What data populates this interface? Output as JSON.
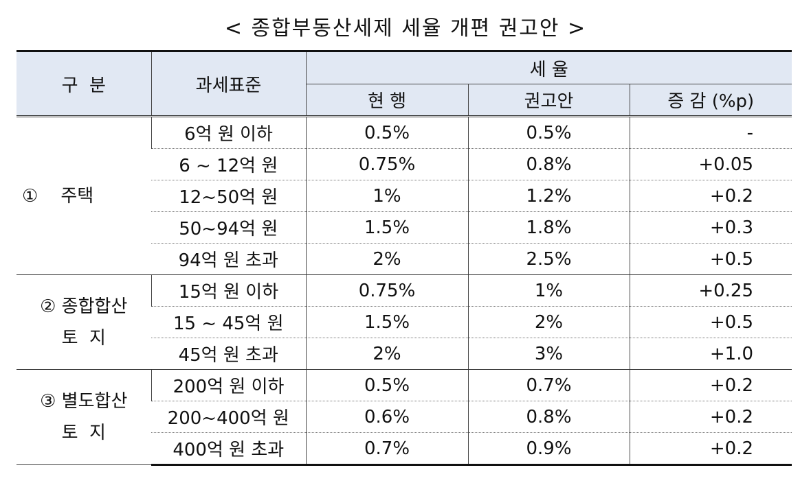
{
  "title": "< 종합부동산세제 세율 개편 권고안 >",
  "header": {
    "category": "구  분",
    "tax_base": "과세표준",
    "tax_rate": "세 율",
    "current": "현 행",
    "proposal": "권고안",
    "change": "증 감 (%p)"
  },
  "groups": [
    {
      "label_lines": [
        "①    주택"
      ],
      "rows": [
        {
          "base": "6억 원 이하",
          "current": "0.5%",
          "proposal": "0.5%",
          "change": "-"
        },
        {
          "base": "6 ~ 12억 원",
          "current": "0.75%",
          "proposal": "0.8%",
          "change": "+0.05"
        },
        {
          "base": "12~50억 원",
          "current": "1%",
          "proposal": "1.2%",
          "change": "+0.2"
        },
        {
          "base": "50~94억 원",
          "current": "1.5%",
          "proposal": "1.8%",
          "change": "+0.3"
        },
        {
          "base": "94억 원 초과",
          "current": "2%",
          "proposal": "2.5%",
          "change": "+0.5"
        }
      ]
    },
    {
      "label_lines": [
        "② 종합합산",
        "토  지"
      ],
      "rows": [
        {
          "base": "15억 원 이하",
          "current": "0.75%",
          "proposal": "1%",
          "change": "+0.25"
        },
        {
          "base": "15 ~ 45억 원",
          "current": "1.5%",
          "proposal": "2%",
          "change": "+0.5"
        },
        {
          "base": "45억 원 초과",
          "current": "2%",
          "proposal": "3%",
          "change": "+1.0"
        }
      ]
    },
    {
      "label_lines": [
        "③ 별도합산",
        "토  지"
      ],
      "rows": [
        {
          "base": "200억 원 이하",
          "current": "0.5%",
          "proposal": "0.7%",
          "change": "+0.2"
        },
        {
          "base": "200~400억 원",
          "current": "0.6%",
          "proposal": "0.8%",
          "change": "+0.2"
        },
        {
          "base": "400억 원 초과",
          "current": "0.7%",
          "proposal": "0.9%",
          "change": "+0.2"
        }
      ]
    }
  ]
}
